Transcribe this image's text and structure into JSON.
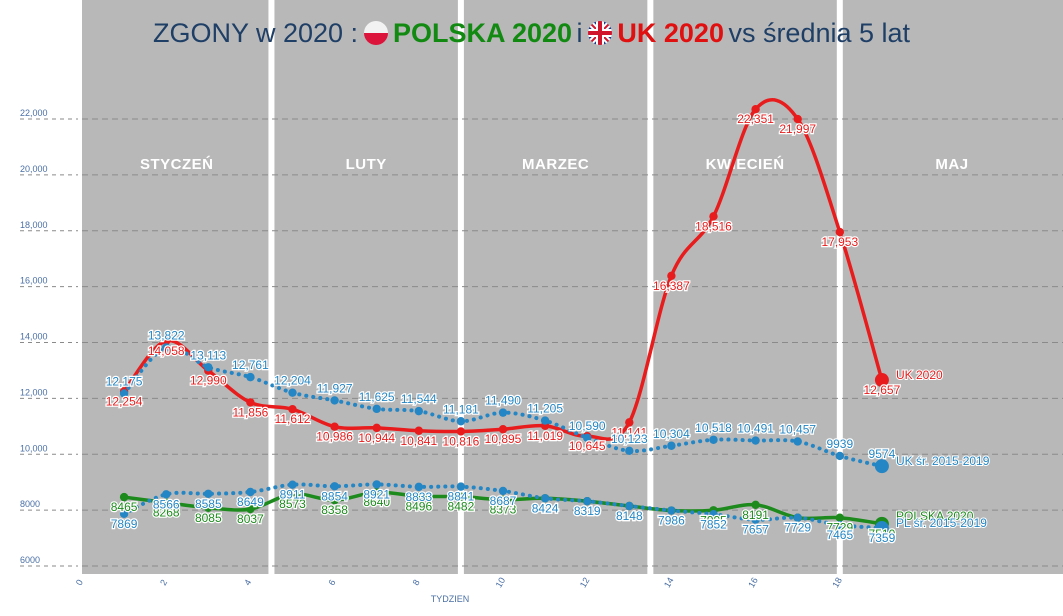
{
  "title": {
    "prefix": "ZGONY w 2020 :",
    "poland": "POLSKA 2020",
    "conj": "i",
    "uk": "UK 2020",
    "suffix": "vs średnia 5 lat"
  },
  "colors": {
    "uk_2020": "#e81c1c",
    "uk_avg": "#2486c4",
    "pl_2020": "#1c8a1c",
    "pl_avg": "#2486c4",
    "month_band": "#b8b8b8",
    "title": "#1f3f66"
  },
  "chart_data": {
    "type": "line",
    "xlabel": "TYDZIEN",
    "ylabel": "",
    "xlim": [
      0,
      19.2
    ],
    "ylim": [
      5600,
      23600
    ],
    "x_ticks": [
      0,
      2,
      4,
      6,
      8,
      10,
      12,
      14,
      16,
      18
    ],
    "y_ticks": [
      {
        "value": 6000,
        "label": "6000"
      },
      {
        "value": 8000,
        "label": "8000"
      },
      {
        "value": 10000,
        "label": "10,000"
      },
      {
        "value": 12000,
        "label": "12,000"
      },
      {
        "value": 14000,
        "label": "14,000"
      },
      {
        "value": 16000,
        "label": "16,000"
      },
      {
        "value": 18000,
        "label": "18,000"
      },
      {
        "value": 20000,
        "label": "20,000"
      },
      {
        "value": 22000,
        "label": "22,000"
      }
    ],
    "months": [
      {
        "name": "STYCZEŃ",
        "start": 0,
        "end": 4.5
      },
      {
        "name": "LUTY",
        "start": 4.5,
        "end": 9
      },
      {
        "name": "MARZEC",
        "start": 9,
        "end": 13.5
      },
      {
        "name": "KWIECIEŃ",
        "start": 13.5,
        "end": 18
      },
      {
        "name": "MAJ",
        "start": 18,
        "end": 19.2
      }
    ],
    "grid": true,
    "legend": "right end of each line",
    "series": [
      {
        "name": "UK 2020",
        "style": "solid",
        "x": [
          1,
          2,
          3,
          4,
          5,
          6,
          7,
          8,
          9,
          10,
          11,
          12,
          13,
          14,
          15,
          16,
          17,
          18,
          19
        ],
        "values": [
          12254,
          14058,
          12990,
          11856,
          11612,
          10986,
          10944,
          10841,
          10816,
          10895,
          11019,
          10645,
          11141,
          16387,
          18516,
          22351,
          21997,
          17953,
          12657
        ],
        "labels": [
          "12,254",
          "14,058",
          "12,990",
          "11,856",
          "11,612",
          "10,986",
          "10,944",
          "10,841",
          "10,816",
          "10,895",
          "11,019",
          "10,645",
          "11,141",
          "16,387",
          "18,516",
          "22,351",
          "21,997",
          "17,953",
          "12,657"
        ]
      },
      {
        "name": "UK śr. 2015-2019",
        "style": "dotted",
        "x": [
          1,
          2,
          3,
          4,
          5,
          6,
          7,
          8,
          9,
          10,
          11,
          12,
          13,
          14,
          15,
          16,
          17,
          18,
          19
        ],
        "values": [
          12175,
          13822,
          13113,
          12761,
          12204,
          11927,
          11625,
          11544,
          11181,
          11490,
          11205,
          10590,
          10123,
          10304,
          10518,
          10491,
          10457,
          9939,
          9574
        ],
        "labels": [
          "12,175",
          "13,822",
          "13,113",
          "12,761",
          "12,204",
          "11,927",
          "11,625",
          "11,544",
          "11,181",
          "11,490",
          "11,205",
          "10,590",
          "10,123",
          "10,304",
          "10,518",
          "10,491",
          "10,457",
          "9939",
          "9574"
        ]
      },
      {
        "name": "POLSKA 2020",
        "style": "solid",
        "x": [
          1,
          2,
          3,
          4,
          5,
          6,
          7,
          8,
          9,
          10,
          11,
          12,
          13,
          14,
          15,
          16,
          17,
          18,
          19
        ],
        "values": [
          8465,
          8268,
          8085,
          8037,
          8573,
          8358,
          8640,
          8496,
          8482,
          8373,
          8424,
          8319,
          8148,
          7986,
          7995,
          8191,
          7729,
          7729,
          7510
        ],
        "labels": [
          "8465",
          "8268",
          "8085",
          "8037",
          "8573",
          "8358",
          "8640",
          "8496",
          "8482",
          "8373",
          "8424",
          "8319",
          "8148",
          "7986",
          "7995",
          "8191",
          "7729",
          "7729",
          "7510"
        ]
      },
      {
        "name": "PL śr. 2015-2019",
        "style": "dotted",
        "x": [
          1,
          2,
          3,
          4,
          5,
          6,
          7,
          8,
          9,
          10,
          11,
          12,
          13,
          14,
          15,
          16,
          17,
          18,
          19
        ],
        "values": [
          7869,
          8566,
          8585,
          8649,
          8911,
          8854,
          8921,
          8833,
          8841,
          8687,
          8424,
          8319,
          8148,
          7986,
          7852,
          7657,
          7729,
          7465,
          7359
        ],
        "labels": [
          "7869",
          "8566",
          "8585",
          "8649",
          "8911",
          "8854",
          "8921",
          "8833",
          "8841",
          "8687",
          "8424",
          "8319",
          "8148",
          "7986",
          "7852",
          "7657",
          "7729",
          "7465",
          "7359"
        ]
      }
    ]
  }
}
